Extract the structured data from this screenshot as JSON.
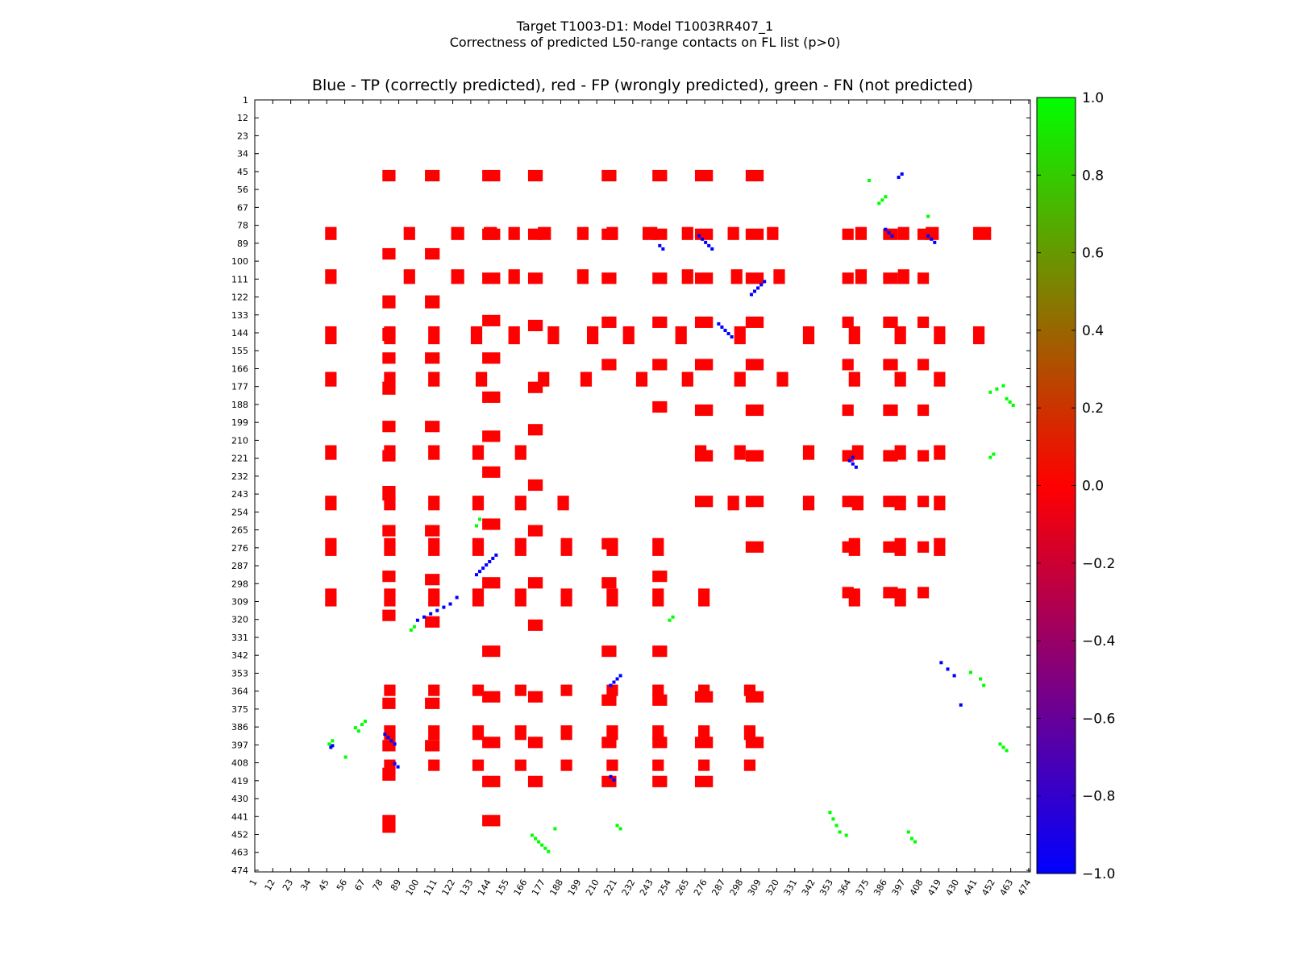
{
  "suptitle": {
    "line1": "Target T1003-D1: Model T1003RR407_1",
    "line2": "Correctness of predicted L50-range contacts on FL list (p>0)"
  },
  "chart_data": {
    "type": "heatmap",
    "title": "Blue - TP (correctly predicted), red - FP (wrongly predicted), green - FN (not predicted)",
    "xlabel": "",
    "ylabel": "",
    "xlim": [
      1,
      474
    ],
    "ylim": [
      1,
      474
    ],
    "y_inverted": true,
    "ticks": [
      "1",
      "12",
      "23",
      "34",
      "45",
      "56",
      "67",
      "78",
      "89",
      "100",
      "111",
      "122",
      "133",
      "144",
      "155",
      "166",
      "177",
      "188",
      "199",
      "210",
      "221",
      "232",
      "243",
      "254",
      "265",
      "276",
      "287",
      "298",
      "309",
      "320",
      "331",
      "342",
      "353",
      "364",
      "375",
      "386",
      "397",
      "408",
      "419",
      "430",
      "441",
      "452",
      "463",
      "474"
    ],
    "colorbar": {
      "range": [
        -1.0,
        1.0
      ],
      "colors": [
        "#0000ff",
        "#ff0000",
        "#00ff00"
      ],
      "ticks": [
        "1.0",
        "0.8",
        "0.6",
        "0.4",
        "0.2",
        "0.0",
        "−0.2",
        "−0.4",
        "−0.6",
        "−0.8",
        "−1.0"
      ]
    },
    "series": [
      {
        "name": "FP",
        "color": "#ff0000",
        "value": 0.0,
        "blocks": [
          [
            79,
            86,
            44,
            50
          ],
          [
            79,
            86,
            92,
            98
          ],
          [
            79,
            86,
            121,
            128
          ],
          [
            79,
            86,
            141,
            148
          ],
          [
            79,
            86,
            156,
            162
          ],
          [
            79,
            86,
            174,
            181
          ],
          [
            79,
            86,
            198,
            204
          ],
          [
            79,
            86,
            216,
            222
          ],
          [
            79,
            86,
            238,
            246
          ],
          [
            79,
            86,
            262,
            268
          ],
          [
            79,
            86,
            290,
            296
          ],
          [
            79,
            86,
            314,
            320
          ],
          [
            79,
            86,
            368,
            374
          ],
          [
            79,
            86,
            394,
            400
          ],
          [
            79,
            86,
            411,
            418
          ],
          [
            79,
            86,
            440,
            450
          ],
          [
            105,
            113,
            44,
            50
          ],
          [
            105,
            113,
            92,
            98
          ],
          [
            105,
            113,
            121,
            128
          ],
          [
            105,
            113,
            156,
            162
          ],
          [
            105,
            113,
            198,
            204
          ],
          [
            105,
            113,
            262,
            268
          ],
          [
            105,
            113,
            292,
            298
          ],
          [
            105,
            113,
            318,
            324
          ],
          [
            105,
            113,
            368,
            374
          ],
          [
            105,
            113,
            394,
            400
          ],
          [
            140,
            150,
            44,
            50
          ],
          [
            140,
            150,
            80,
            86
          ],
          [
            140,
            150,
            107,
            113
          ],
          [
            140,
            150,
            133,
            139
          ],
          [
            140,
            150,
            156,
            162
          ],
          [
            140,
            150,
            180,
            186
          ],
          [
            140,
            150,
            204,
            210
          ],
          [
            140,
            150,
            226,
            232
          ],
          [
            140,
            150,
            258,
            264
          ],
          [
            140,
            150,
            294,
            300
          ],
          [
            140,
            150,
            336,
            342
          ],
          [
            140,
            150,
            364,
            370
          ],
          [
            140,
            150,
            392,
            398
          ],
          [
            140,
            150,
            416,
            422
          ],
          [
            140,
            150,
            440,
            446
          ],
          [
            168,
            176,
            44,
            50
          ],
          [
            168,
            176,
            80,
            86
          ],
          [
            168,
            176,
            107,
            113
          ],
          [
            168,
            176,
            136,
            142
          ],
          [
            168,
            176,
            174,
            180
          ],
          [
            168,
            176,
            200,
            206
          ],
          [
            168,
            176,
            234,
            240
          ],
          [
            168,
            176,
            262,
            268
          ],
          [
            168,
            176,
            294,
            300
          ],
          [
            168,
            176,
            320,
            326
          ],
          [
            168,
            176,
            364,
            370
          ],
          [
            168,
            176,
            392,
            398
          ],
          [
            168,
            176,
            416,
            422
          ],
          [
            213,
            221,
            44,
            50
          ],
          [
            213,
            221,
            80,
            86
          ],
          [
            213,
            221,
            107,
            113
          ],
          [
            213,
            221,
            134,
            140
          ],
          [
            213,
            221,
            160,
            166
          ],
          [
            213,
            221,
            270,
            276
          ],
          [
            213,
            221,
            294,
            300
          ],
          [
            213,
            221,
            336,
            342
          ],
          [
            213,
            221,
            366,
            372
          ],
          [
            213,
            221,
            392,
            398
          ],
          [
            213,
            221,
            416,
            422
          ],
          [
            244,
            252,
            44,
            50
          ],
          [
            244,
            252,
            80,
            86
          ],
          [
            244,
            252,
            107,
            113
          ],
          [
            244,
            252,
            134,
            140
          ],
          [
            244,
            252,
            160,
            166
          ],
          [
            244,
            252,
            186,
            192
          ],
          [
            244,
            252,
            290,
            296
          ],
          [
            244,
            252,
            336,
            342
          ],
          [
            244,
            252,
            366,
            372
          ],
          [
            244,
            252,
            392,
            398
          ],
          [
            244,
            252,
            416,
            422
          ],
          [
            270,
            280,
            44,
            50
          ],
          [
            270,
            280,
            80,
            86
          ],
          [
            270,
            280,
            107,
            113
          ],
          [
            270,
            280,
            134,
            140
          ],
          [
            270,
            280,
            160,
            166
          ],
          [
            270,
            280,
            188,
            194
          ],
          [
            270,
            280,
            216,
            222
          ],
          [
            270,
            280,
            244,
            250
          ],
          [
            270,
            280,
            364,
            370
          ],
          [
            270,
            280,
            392,
            398
          ],
          [
            270,
            280,
            416,
            422
          ],
          [
            301,
            311,
            44,
            50
          ],
          [
            301,
            311,
            80,
            86
          ],
          [
            301,
            311,
            107,
            113
          ],
          [
            301,
            311,
            134,
            140
          ],
          [
            301,
            311,
            160,
            166
          ],
          [
            301,
            311,
            188,
            194
          ],
          [
            301,
            311,
            216,
            222
          ],
          [
            301,
            311,
            244,
            250
          ],
          [
            301,
            311,
            272,
            278
          ],
          [
            301,
            311,
            364,
            370
          ],
          [
            301,
            311,
            392,
            398
          ],
          [
            360,
            366,
            80,
            86
          ],
          [
            360,
            366,
            107,
            113
          ],
          [
            360,
            366,
            134,
            140
          ],
          [
            360,
            366,
            160,
            166
          ],
          [
            360,
            366,
            188,
            194
          ],
          [
            360,
            366,
            216,
            222
          ],
          [
            360,
            366,
            244,
            250
          ],
          [
            360,
            366,
            272,
            278
          ],
          [
            360,
            366,
            300,
            306
          ],
          [
            385,
            393,
            80,
            86
          ],
          [
            385,
            393,
            107,
            113
          ],
          [
            385,
            393,
            134,
            140
          ],
          [
            385,
            393,
            160,
            166
          ],
          [
            385,
            393,
            188,
            194
          ],
          [
            385,
            393,
            216,
            222
          ],
          [
            385,
            393,
            244,
            250
          ],
          [
            385,
            393,
            272,
            278
          ],
          [
            385,
            393,
            300,
            306
          ],
          [
            406,
            412,
            80,
            86
          ],
          [
            406,
            412,
            107,
            113
          ],
          [
            406,
            412,
            134,
            140
          ],
          [
            406,
            412,
            160,
            166
          ],
          [
            406,
            412,
            188,
            194
          ],
          [
            406,
            412,
            216,
            222
          ],
          [
            406,
            412,
            244,
            250
          ],
          [
            406,
            412,
            272,
            278
          ],
          [
            406,
            412,
            300,
            306
          ]
        ]
      },
      {
        "name": "TP",
        "color": "#0000ff",
        "value": -1.0,
        "cells": [
          [
            47,
            398
          ],
          [
            48,
            397
          ],
          [
            80,
            390
          ],
          [
            82,
            392
          ],
          [
            84,
            394
          ],
          [
            86,
            396
          ],
          [
            88,
            410
          ],
          [
            86,
            408
          ],
          [
            100,
            320
          ],
          [
            104,
            318
          ],
          [
            108,
            316
          ],
          [
            112,
            314
          ],
          [
            116,
            312
          ],
          [
            120,
            310
          ],
          [
            124,
            306
          ],
          [
            136,
            292
          ],
          [
            138,
            290
          ],
          [
            140,
            288
          ],
          [
            142,
            286
          ],
          [
            144,
            284
          ],
          [
            146,
            282
          ],
          [
            148,
            280
          ],
          [
            218,
            360
          ],
          [
            220,
            358
          ],
          [
            222,
            356
          ],
          [
            224,
            354
          ],
          [
            218,
            416
          ],
          [
            220,
            418
          ],
          [
            248,
            90
          ],
          [
            250,
            92
          ],
          [
            272,
            84
          ],
          [
            274,
            86
          ],
          [
            276,
            88
          ],
          [
            278,
            90
          ],
          [
            280,
            92
          ],
          [
            284,
            138
          ],
          [
            286,
            140
          ],
          [
            288,
            142
          ],
          [
            290,
            144
          ],
          [
            292,
            146
          ],
          [
            304,
            120
          ],
          [
            306,
            118
          ],
          [
            308,
            116
          ],
          [
            310,
            114
          ],
          [
            312,
            112
          ],
          [
            364,
            222
          ],
          [
            366,
            224
          ],
          [
            368,
            226
          ],
          [
            366,
            220
          ],
          [
            386,
            80
          ],
          [
            388,
            82
          ],
          [
            390,
            84
          ],
          [
            394,
            48
          ],
          [
            396,
            46
          ],
          [
            412,
            84
          ],
          [
            414,
            86
          ],
          [
            416,
            88
          ],
          [
            420,
            346
          ],
          [
            424,
            350
          ],
          [
            428,
            354
          ],
          [
            432,
            372
          ]
        ]
      },
      {
        "name": "FN",
        "color": "#00ff00",
        "cells": [
          [
            46,
            396
          ],
          [
            48,
            394
          ],
          [
            56,
            404
          ],
          [
            62,
            386
          ],
          [
            64,
            388
          ],
          [
            66,
            384
          ],
          [
            68,
            382
          ],
          [
            96,
            326
          ],
          [
            98,
            324
          ],
          [
            136,
            262
          ],
          [
            138,
            258
          ],
          [
            170,
            452
          ],
          [
            172,
            454
          ],
          [
            174,
            456
          ],
          [
            176,
            458
          ],
          [
            178,
            460
          ],
          [
            180,
            462
          ],
          [
            184,
            448
          ],
          [
            222,
            446
          ],
          [
            224,
            448
          ],
          [
            254,
            320
          ],
          [
            256,
            318
          ],
          [
            352,
            438
          ],
          [
            354,
            442
          ],
          [
            356,
            446
          ],
          [
            358,
            450
          ],
          [
            362,
            452
          ],
          [
            376,
            50
          ],
          [
            382,
            64
          ],
          [
            384,
            62
          ],
          [
            386,
            60
          ],
          [
            400,
            450
          ],
          [
            402,
            454
          ],
          [
            404,
            456
          ],
          [
            412,
            72
          ],
          [
            438,
            352
          ],
          [
            444,
            356
          ],
          [
            446,
            360
          ],
          [
            450,
            220
          ],
          [
            452,
            218
          ],
          [
            450,
            180
          ],
          [
            454,
            178
          ],
          [
            458,
            176
          ],
          [
            456,
            396
          ],
          [
            458,
            398
          ],
          [
            460,
            400
          ],
          [
            460,
            184
          ],
          [
            462,
            186
          ],
          [
            464,
            188
          ]
        ]
      }
    ]
  }
}
